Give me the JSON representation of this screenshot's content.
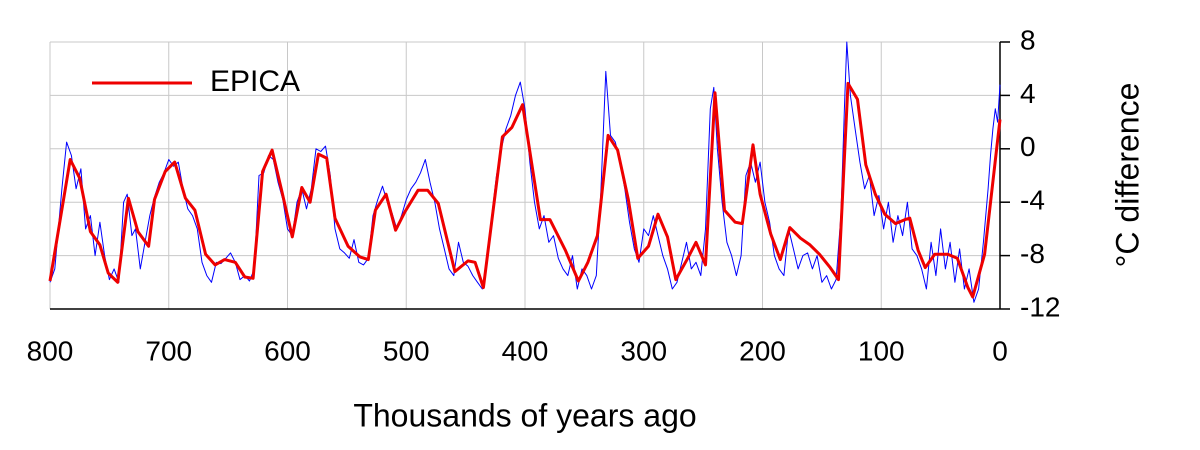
{
  "chart_data": {
    "type": "line",
    "x_label": "Thousands of years ago",
    "y_label": "°C difference",
    "xlim": [
      800,
      0
    ],
    "xticks": [
      800,
      700,
      600,
      500,
      400,
      300,
      200,
      100,
      0
    ],
    "ylim": [
      -12,
      8
    ],
    "yticks": [
      8,
      4,
      0,
      -4,
      -8,
      -12
    ],
    "y_axis_side": "right",
    "grid": true,
    "legend": "upper left",
    "series": [
      {
        "color": "#0000ff",
        "width": 1,
        "x": [
          800,
          796,
          790,
          786,
          782,
          778,
          774,
          770,
          766,
          762,
          758,
          754,
          750,
          746,
          742,
          738,
          735,
          731,
          728,
          724,
          720,
          716,
          712,
          708,
          704,
          700,
          696,
          692,
          688,
          684,
          680,
          676,
          672,
          668,
          664,
          660,
          656,
          652,
          648,
          644,
          640,
          636,
          632,
          628,
          624,
          620,
          616,
          612,
          608,
          604,
          600,
          596,
          592,
          588,
          584,
          580,
          576,
          572,
          568,
          564,
          560,
          556,
          552,
          548,
          544,
          540,
          536,
          532,
          528,
          524,
          520,
          516,
          512,
          508,
          504,
          500,
          496,
          492,
          488,
          484,
          480,
          476,
          472,
          468,
          464,
          460,
          456,
          452,
          448,
          444,
          440,
          436,
          432,
          428,
          424,
          420,
          416,
          412,
          408,
          404,
          400,
          396,
          392,
          388,
          384,
          380,
          376,
          372,
          368,
          364,
          360,
          356,
          352,
          348,
          344,
          340,
          336,
          332,
          328,
          324,
          320,
          316,
          312,
          308,
          304,
          300,
          296,
          292,
          288,
          284,
          280,
          276,
          272,
          268,
          264,
          260,
          256,
          252,
          248,
          244,
          241,
          238,
          234,
          230,
          226,
          222,
          218,
          214,
          210,
          206,
          202,
          198,
          194,
          190,
          186,
          182,
          178,
          174,
          170,
          166,
          162,
          158,
          154,
          150,
          146,
          142,
          138,
          134,
          131,
          129,
          126,
          122,
          118,
          114,
          110,
          106,
          102,
          98,
          94,
          90,
          86,
          82,
          78,
          74,
          70,
          66,
          62,
          58,
          54,
          50,
          46,
          42,
          38,
          34,
          30,
          26,
          22,
          18,
          14,
          10,
          8,
          6,
          4,
          2,
          0
        ],
        "values": [
          -10,
          -9,
          -3,
          0.5,
          -0.5,
          -3,
          -1.5,
          -6,
          -5,
          -8,
          -5.5,
          -8,
          -9.8,
          -9,
          -10,
          -4,
          -3.4,
          -6.5,
          -6,
          -9,
          -7,
          -5,
          -3.6,
          -2.5,
          -1.8,
          -0.8,
          -1.3,
          -1,
          -3,
          -4.5,
          -5,
          -6,
          -8.5,
          -9.5,
          -10,
          -8.5,
          -8.6,
          -8.2,
          -7.8,
          -8.5,
          -9.8,
          -9.5,
          -9.9,
          -9,
          -2,
          -1.8,
          -0.5,
          -0.8,
          -2.5,
          -3.8,
          -6,
          -6.5,
          -4,
          -3,
          -4.5,
          -3,
          0,
          -0.2,
          0.2,
          -2,
          -6,
          -7.5,
          -7.8,
          -8.2,
          -6.8,
          -8.5,
          -8.7,
          -8.2,
          -5,
          -3.8,
          -2.8,
          -4,
          -4.8,
          -6,
          -5,
          -3.8,
          -3,
          -2.5,
          -1.8,
          -0.8,
          -2.5,
          -4,
          -6,
          -7.5,
          -9,
          -9.5,
          -7,
          -8.5,
          -8.8,
          -9.5,
          -10,
          -10.5,
          -8,
          -5,
          -2,
          0,
          1.5,
          2.5,
          4,
          5,
          3,
          -1,
          -4,
          -6,
          -5,
          -7,
          -6.5,
          -8.2,
          -9,
          -9.5,
          -8,
          -10.5,
          -9,
          -9.5,
          -10.5,
          -9.5,
          -3,
          5.8,
          1,
          0.5,
          -1,
          -3,
          -5.5,
          -7.5,
          -8.5,
          -6,
          -6.5,
          -5,
          -6.5,
          -8,
          -9,
          -10.5,
          -10,
          -8.5,
          -7,
          -9,
          -8.5,
          -9.5,
          -6,
          3,
          4.6,
          0,
          -4,
          -7,
          -8,
          -9.5,
          -8,
          -2,
          -1,
          -2.5,
          -1,
          -4,
          -5.5,
          -8,
          -9,
          -9.5,
          -6,
          -7.5,
          -9,
          -8,
          -7.8,
          -9,
          -8,
          -10,
          -9.5,
          -10.5,
          -9.8,
          -5,
          3,
          8,
          4,
          1.5,
          -1,
          -3,
          -2,
          -5,
          -3.5,
          -6,
          -4,
          -7,
          -5,
          -6.5,
          -4,
          -7.5,
          -8,
          -9,
          -10.5,
          -7,
          -9.5,
          -6,
          -9,
          -7,
          -10,
          -7.5,
          -10.5,
          -9,
          -11.5,
          -10.5,
          -7,
          -3,
          -0.5,
          1.5,
          3,
          2,
          4.8
        ]
      },
      {
        "name": "EPICA",
        "color": "#ee0000",
        "width": 3,
        "x": [
          800,
          783,
          775,
          766,
          758,
          751,
          743,
          734,
          726,
          717,
          712,
          703,
          695,
          686,
          678,
          669,
          661,
          653,
          644,
          636,
          629,
          621,
          613,
          605,
          596,
          588,
          581,
          574,
          567,
          560,
          549,
          539,
          532,
          526,
          517,
          509,
          501,
          490,
          482,
          473,
          459,
          448,
          442,
          435,
          419,
          411,
          402,
          387,
          379,
          366,
          355,
          347,
          339,
          330,
          322,
          313,
          305,
          296,
          288,
          280,
          273,
          263,
          256,
          248,
          240,
          232,
          223,
          217,
          208,
          202,
          193,
          185,
          177,
          168,
          160,
          152,
          143,
          136,
          128,
          120,
          113,
          105,
          97,
          88,
          80,
          76,
          69,
          63,
          55,
          44,
          36,
          27,
          23,
          13,
          0
        ],
        "values": [
          -9.9,
          -0.8,
          -2.2,
          -6.2,
          -7.2,
          -9.3,
          -10,
          -3.7,
          -6.2,
          -7.3,
          -3.8,
          -1.7,
          -1,
          -3.7,
          -4.6,
          -7.9,
          -8.7,
          -8.3,
          -8.5,
          -9.6,
          -9.7,
          -1.7,
          -0.1,
          -3.1,
          -6.6,
          -2.9,
          -4,
          -0.4,
          -0.7,
          -5.2,
          -7.3,
          -8.1,
          -8.3,
          -4.6,
          -3.4,
          -6.1,
          -4.7,
          -3.1,
          -3.1,
          -4.1,
          -9.2,
          -8.4,
          -8.5,
          -10.4,
          0.9,
          1.6,
          3.3,
          -5.3,
          -5.3,
          -7.6,
          -9.9,
          -8.5,
          -6.5,
          1,
          -0.1,
          -3.8,
          -8.2,
          -7.3,
          -4.9,
          -6.6,
          -9.8,
          -8.2,
          -7,
          -8.7,
          4.2,
          -4.6,
          -5.5,
          -5.6,
          0.3,
          -3.4,
          -6.4,
          -8.3,
          -5.9,
          -6.7,
          -7.2,
          -7.9,
          -8.9,
          -9.8,
          4.9,
          3.7,
          -1.2,
          -3.4,
          -4.9,
          -5.6,
          -5.3,
          -5.2,
          -7.6,
          -8.9,
          -7.9,
          -7.9,
          -8.2,
          -10.4,
          -11.1,
          -7.9,
          2.2
        ]
      }
    ]
  }
}
